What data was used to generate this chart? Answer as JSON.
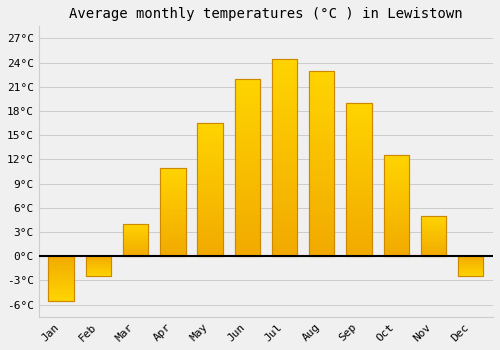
{
  "title": "Average monthly temperatures (°C ) in Lewistown",
  "months": [
    "Jan",
    "Feb",
    "Mar",
    "Apr",
    "May",
    "Jun",
    "Jul",
    "Aug",
    "Sep",
    "Oct",
    "Nov",
    "Dec"
  ],
  "values": [
    -5.5,
    -2.5,
    4.0,
    11.0,
    16.5,
    22.0,
    24.5,
    23.0,
    19.0,
    12.5,
    5.0,
    -2.5
  ],
  "bar_color": "#FFAA00",
  "bar_edge_color": "#CC8800",
  "bar_gradient_top": "#FFD060",
  "bar_gradient_bottom": "#FF9900",
  "background_color": "#F0F0F0",
  "grid_color": "#CCCCCC",
  "yticks": [
    -6,
    -3,
    0,
    3,
    6,
    9,
    12,
    15,
    18,
    21,
    24,
    27
  ],
  "ylim": [
    -7.5,
    28.5
  ],
  "title_fontsize": 10,
  "tick_fontsize": 8,
  "font_family": "monospace"
}
